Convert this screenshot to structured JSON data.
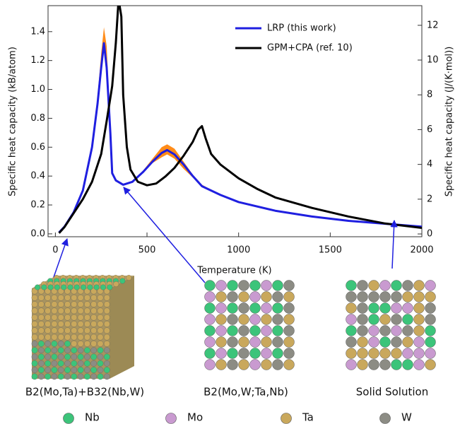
{
  "chart_data": {
    "type": "line",
    "xlabel": "Temperature (K)",
    "ylabel": "Specific heat capacity (kB/atom)",
    "y2label": "Specific heat capacity (J/(K·mol))",
    "xlim": [
      -40,
      2000
    ],
    "xticks": [
      0,
      500,
      1000,
      1500,
      2000
    ],
    "ylim": [
      -0.02,
      1.58
    ],
    "yticks": [
      {
        "value": 0,
        "label": "0.0"
      },
      0.2,
      0.4,
      0.6,
      0.8,
      {
        "value": 1,
        "label": "1.0"
      },
      1.2,
      1.4
    ],
    "y2lim": [
      -0.16,
      13.13
    ],
    "y2ticks": [
      0,
      2,
      4,
      6,
      8,
      10,
      12
    ],
    "legend": "upper right",
    "series": [
      {
        "name": "LRP (this work)",
        "color": "#1f1fe0",
        "band_color": "#ff8c1a",
        "x": [
          20,
          50,
          100,
          150,
          200,
          230,
          250,
          265,
          280,
          300,
          310,
          330,
          370,
          420,
          480,
          530,
          580,
          610,
          650,
          700,
          750,
          800,
          900,
          1000,
          1200,
          1400,
          1600,
          1800,
          2000
        ],
        "values": [
          0.01,
          0.05,
          0.15,
          0.3,
          0.6,
          0.9,
          1.15,
          1.32,
          1.15,
          0.7,
          0.42,
          0.37,
          0.34,
          0.36,
          0.43,
          0.5,
          0.56,
          0.58,
          0.55,
          0.48,
          0.4,
          0.33,
          0.27,
          0.22,
          0.16,
          0.12,
          0.09,
          0.07,
          0.05
        ],
        "lower": [
          0.01,
          0.05,
          0.15,
          0.3,
          0.6,
          0.88,
          1.1,
          1.27,
          1.1,
          0.68,
          0.42,
          0.37,
          0.34,
          0.36,
          0.43,
          0.49,
          0.53,
          0.55,
          0.52,
          0.45,
          0.39,
          0.33,
          0.27,
          0.22,
          0.16,
          0.12,
          0.09,
          0.07,
          0.05
        ],
        "upper": [
          0.01,
          0.05,
          0.15,
          0.3,
          0.6,
          0.95,
          1.25,
          1.43,
          1.3,
          0.75,
          0.43,
          0.37,
          0.34,
          0.36,
          0.44,
          0.52,
          0.6,
          0.62,
          0.59,
          0.5,
          0.41,
          0.34,
          0.27,
          0.22,
          0.16,
          0.12,
          0.09,
          0.07,
          0.05
        ]
      },
      {
        "name": "GPM+CPA (ref. 10)",
        "color": "#000000",
        "axis": "y2",
        "x": [
          20,
          50,
          100,
          150,
          200,
          250,
          280,
          310,
          330,
          345,
          360,
          370,
          390,
          410,
          450,
          500,
          550,
          600,
          650,
          700,
          750,
          780,
          800,
          820,
          850,
          900,
          1000,
          1100,
          1200,
          1400,
          1600,
          1800,
          2000
        ],
        "values": [
          0.05,
          0.4,
          1.2,
          2.0,
          3.0,
          4.6,
          6.5,
          8.5,
          11,
          13.5,
          12.5,
          8,
          5,
          3.7,
          3.0,
          2.8,
          2.9,
          3.3,
          3.8,
          4.5,
          5.3,
          6,
          6.2,
          5.5,
          4.6,
          4.0,
          3.2,
          2.6,
          2.1,
          1.5,
          1.0,
          0.6,
          0.35
        ]
      }
    ]
  },
  "structures": [
    {
      "caption": "B2(Mo,Ta)+B32(Nb,W)"
    },
    {
      "caption": "B2(Mo,W;Ta,Nb)"
    },
    {
      "caption": "Solid Solution"
    }
  ],
  "elements": [
    {
      "label": "Nb",
      "color": "#3cc47a"
    },
    {
      "label": "Mo",
      "color": "#c99ad0"
    },
    {
      "label": "Ta",
      "color": "#c9a85c"
    },
    {
      "label": "W",
      "color": "#8c8c84"
    }
  ]
}
